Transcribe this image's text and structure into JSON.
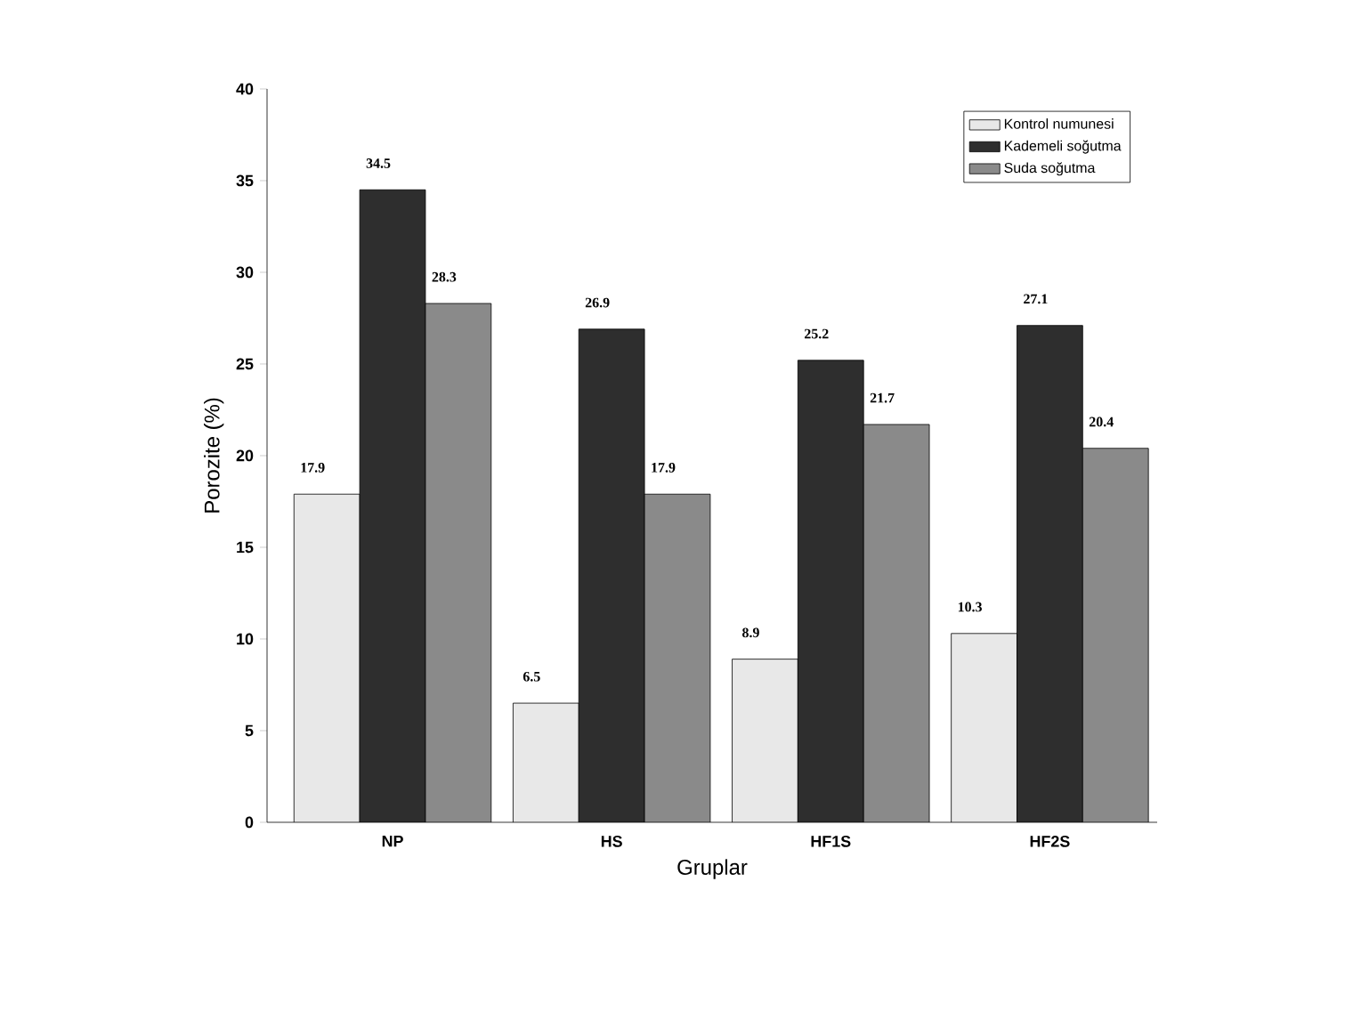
{
  "chart_data": {
    "type": "bar",
    "xlabel": "Gruplar",
    "ylabel": "Porozite (%)",
    "categories": [
      "NP",
      "HS",
      "HF1S",
      "HF2S"
    ],
    "series": [
      {
        "name": "Kontrol numunesi",
        "color": "#e8e8e8",
        "values": [
          17.9,
          6.5,
          8.9,
          10.3
        ]
      },
      {
        "name": "Kademeli soğutma",
        "color": "#2e2e2e",
        "values": [
          34.5,
          26.9,
          25.2,
          27.1
        ]
      },
      {
        "name": "Suda soğutma",
        "color": "#8a8a8a",
        "values": [
          28.3,
          17.9,
          21.7,
          20.4
        ]
      }
    ],
    "ylim": [
      0,
      40
    ],
    "yticks": [
      0,
      5,
      10,
      15,
      20,
      25,
      30,
      35,
      40
    ],
    "data_labels": true,
    "legend": "top right",
    "grid": false
  }
}
